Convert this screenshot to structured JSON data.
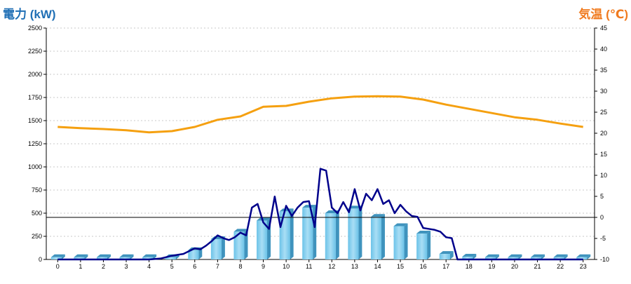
{
  "chart_data": {
    "type": "bar",
    "left_axis": {
      "title": "電力 (kW)",
      "min": 0,
      "max": 2500,
      "step": 250,
      "color": "#1f6fb5"
    },
    "right_axis": {
      "title": "気温 (℃)",
      "min": -10,
      "max": 45,
      "step": 5,
      "color": "#f07a1e"
    },
    "x": [
      0,
      1,
      2,
      3,
      4,
      5,
      6,
      7,
      8,
      9,
      10,
      11,
      12,
      13,
      14,
      15,
      16,
      17,
      18,
      19,
      20,
      21,
      22,
      23
    ],
    "grid": true,
    "bar_series": {
      "values": [
        25,
        25,
        25,
        25,
        25,
        25,
        100,
        220,
        300,
        420,
        520,
        560,
        500,
        550,
        460,
        360,
        280,
        60,
        30,
        25,
        25,
        25,
        25,
        25
      ]
    },
    "line_series": {
      "x": [
        0,
        0.5,
        1,
        1.5,
        2,
        2.5,
        3,
        3.5,
        4,
        4.5,
        5,
        5.25,
        5.5,
        5.75,
        6,
        6.25,
        6.5,
        6.75,
        7,
        7.25,
        7.5,
        7.75,
        8,
        8.25,
        8.5,
        8.75,
        9,
        9.25,
        9.5,
        9.75,
        10,
        10.25,
        10.5,
        10.75,
        11,
        11.25,
        11.5,
        11.75,
        12,
        12.25,
        12.5,
        12.75,
        13,
        13.25,
        13.5,
        13.75,
        14,
        14.25,
        14.5,
        14.75,
        15,
        15.25,
        15.5,
        15.75,
        16,
        16.25,
        16.5,
        16.75,
        17,
        17.25,
        17.5,
        17.75,
        18,
        19,
        20,
        21,
        22,
        23
      ],
      "values": [
        0,
        0,
        0,
        0,
        0,
        0,
        0,
        0,
        0,
        10,
        40,
        50,
        60,
        90,
        120,
        110,
        150,
        200,
        260,
        230,
        210,
        240,
        290,
        260,
        560,
        600,
        400,
        330,
        680,
        350,
        580,
        470,
        560,
        620,
        630,
        350,
        980,
        960,
        560,
        500,
        620,
        510,
        760,
        530,
        710,
        640,
        760,
        600,
        640,
        500,
        590,
        520,
        470,
        460,
        340,
        330,
        320,
        300,
        240,
        230,
        0,
        0,
        0,
        0,
        0,
        0,
        0,
        0
      ],
      "color": "#00008b"
    },
    "temp_series": {
      "values": [
        21.5,
        21.2,
        21.0,
        20.7,
        20.2,
        20.5,
        21.5,
        23.2,
        24.0,
        26.3,
        26.5,
        27.5,
        28.3,
        28.7,
        28.8,
        28.7,
        28.0,
        26.8,
        25.8,
        24.8,
        23.8,
        23.2,
        22.3,
        21.5
      ],
      "color": "#f5a010"
    },
    "reference_line": {
      "axis": "right",
      "value": 0
    }
  }
}
